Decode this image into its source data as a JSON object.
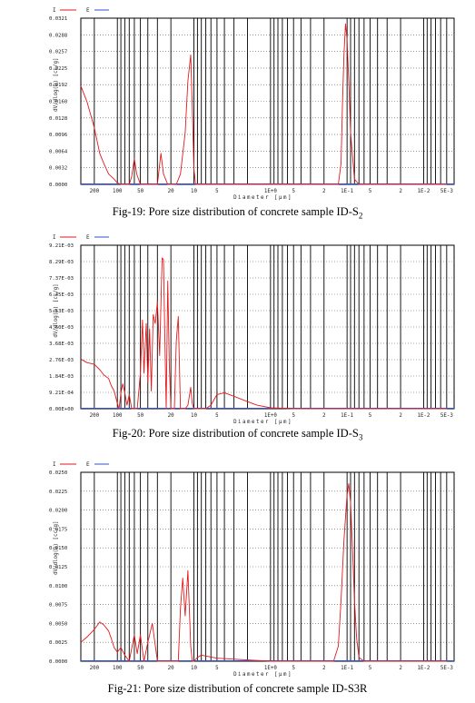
{
  "figures": [
    {
      "caption": {
        "prefix": "Fig-19: Pore size distribution of concrete sample ID-S",
        "sub": "2"
      },
      "legend": {
        "cum": "I",
        "inc": "E"
      },
      "ylabel": "dV/dlog(D) [cc/g]",
      "xlabel": "Diameter [µm]",
      "yticks": [
        "0.0321",
        "0.0288",
        "0.0257",
        "0.0225",
        "0.0192",
        "0.0160",
        "0.0128",
        "0.0096",
        "0.0064",
        "0.0032",
        "0.0000"
      ],
      "xticks": [
        "200",
        "100",
        "50",
        "20",
        "10",
        "5",
        "1E+0",
        "5",
        "2",
        "1E-1",
        "5",
        "2",
        "1E-2",
        "5E-3"
      ]
    },
    {
      "caption": {
        "prefix": "Fig-20: Pore size distribution of concrete sample ID-S",
        "sub": "3"
      },
      "legend": {
        "cum": "I",
        "inc": "E"
      },
      "ylabel": "dV/dlog(D) [cc/g]",
      "xlabel": "Diameter [µm]",
      "yticks": [
        "9.21E-03",
        "8.29E-03",
        "7.37E-03",
        "6.45E-03",
        "5.53E-03",
        "4.60E-03",
        "3.68E-03",
        "2.76E-03",
        "1.84E-03",
        "9.21E-04",
        "0.00E+00"
      ],
      "xticks": [
        "200",
        "100",
        "50",
        "20",
        "10",
        "5",
        "1E+0",
        "5",
        "2",
        "1E-1",
        "5",
        "2",
        "1E-2",
        "5E-3"
      ]
    },
    {
      "caption": {
        "prefix": "Fig-21: Pore size distribution of concrete sample ID-S3R",
        "sub": ""
      },
      "legend": {
        "cum": "I",
        "inc": "E"
      },
      "ylabel": "dV/dlog(D) [cc/g]",
      "xlabel": "Diameter [µm]",
      "yticks": [
        "0.0250",
        "0.0225",
        "0.0200",
        "0.0175",
        "0.0150",
        "0.0125",
        "0.0100",
        "0.0075",
        "0.0050",
        "0.0025",
        "0.0000"
      ],
      "xticks": [
        "200",
        "100",
        "50",
        "20",
        "10",
        "5",
        "1E+0",
        "5",
        "2",
        "1E-1",
        "5",
        "2",
        "1E-2",
        "5E-3"
      ]
    }
  ],
  "colors": {
    "incremental": "#e31a1c",
    "cumulative": "#3050d0",
    "grid": "#000000"
  },
  "chart_data": [
    {
      "type": "line",
      "xscale": "log-reversed",
      "xlim": [
        300,
        0.004
      ],
      "ylim": [
        0,
        0.0321
      ],
      "grid": true,
      "legend_position": "top-left",
      "series": [
        {
          "name": "E",
          "x": [
            300,
            250,
            200,
            170,
            150,
            130,
            110,
            100,
            90,
            80,
            70,
            65,
            60,
            56,
            50,
            45,
            40,
            35,
            30,
            27,
            25,
            22,
            20,
            17,
            15,
            13,
            12,
            11,
            10.5,
            10,
            9.5,
            9,
            8,
            6,
            1,
            0.5,
            0.2,
            0.13,
            0.12,
            0.115,
            0.11,
            0.105,
            0.1,
            0.095,
            0.09,
            0.08,
            0.07,
            0.06,
            0.055,
            0.05,
            0.03,
            0.01,
            0.005
          ],
          "y": [
            0.019,
            0.016,
            0.011,
            0.006,
            0.004,
            0.002,
            0.001,
            0.0003,
            0,
            0,
            0,
            0.0015,
            0.005,
            0.002,
            0,
            0,
            0,
            0,
            0,
            0.006,
            0.002,
            0,
            0,
            0,
            0.002,
            0.01,
            0.02,
            0.025,
            0.015,
            0.003,
            0,
            0,
            0,
            0,
            0,
            0,
            0,
            0,
            0.004,
            0.015,
            0.025,
            0.031,
            0.028,
            0.02,
            0.01,
            0.001,
            0,
            0,
            0,
            0,
            0,
            0,
            0
          ]
        }
      ]
    },
    {
      "type": "line",
      "xscale": "log-reversed",
      "xlim": [
        300,
        0.004
      ],
      "ylim": [
        0,
        0.00921
      ],
      "grid": true,
      "legend_position": "top-left",
      "series": [
        {
          "name": "E",
          "x": [
            300,
            250,
            200,
            170,
            150,
            130,
            120,
            110,
            100,
            95,
            90,
            85,
            80,
            75,
            70,
            65,
            60,
            55,
            50,
            47,
            45,
            42,
            40,
            38,
            36,
            34,
            32,
            30,
            28,
            26,
            25,
            24,
            23,
            22,
            21,
            20,
            19,
            18,
            17,
            16,
            15,
            14,
            13,
            12,
            11,
            10.5,
            10,
            9,
            8,
            7,
            6,
            5,
            4,
            3,
            2,
            1.5,
            1,
            0.5,
            0.1,
            0.01,
            0.005
          ],
          "y": [
            0.0028,
            0.0026,
            0.0025,
            0.0022,
            0.0019,
            0.0017,
            0.0013,
            0.001,
            0.0003,
            0,
            0.0009,
            0.0014,
            0.0009,
            0.0002,
            0.0008,
            0,
            0,
            0,
            0.002,
            0.005,
            0.002,
            0.0048,
            0.0015,
            0.0045,
            0.001,
            0.0053,
            0.0048,
            0.006,
            0.003,
            0.0085,
            0.0084,
            0.004,
            0,
            0.0072,
            0.0025,
            0,
            0,
            0,
            0.0038,
            0.0052,
            0,
            0,
            0,
            0.0002,
            0.0012,
            0.0003,
            0,
            0,
            0,
            0,
            0.0002,
            0.0008,
            0.0009,
            0.0007,
            0.0004,
            0.0002,
            5e-05,
            0,
            0,
            0,
            0
          ]
        }
      ]
    },
    {
      "type": "line",
      "xscale": "log-reversed",
      "xlim": [
        300,
        0.004
      ],
      "ylim": [
        0,
        0.025
      ],
      "grid": true,
      "legend_position": "top-left",
      "series": [
        {
          "name": "E",
          "x": [
            300,
            250,
            200,
            170,
            150,
            130,
            120,
            110,
            100,
            90,
            80,
            70,
            60,
            55,
            50,
            45,
            40,
            35,
            30,
            25,
            22,
            20,
            18,
            16,
            15,
            14,
            13,
            12,
            11,
            10.5,
            10,
            9,
            8,
            5,
            1,
            0.5,
            0.2,
            0.15,
            0.13,
            0.12,
            0.11,
            0.1,
            0.095,
            0.09,
            0.085,
            0.08,
            0.075,
            0.07,
            0.06,
            0.05,
            0.01,
            0.005
          ],
          "y": [
            0.0025,
            0.0032,
            0.0042,
            0.0052,
            0.0048,
            0.004,
            0.003,
            0.0018,
            0.0012,
            0.0018,
            0.0008,
            0,
            0.0035,
            0.001,
            0.0035,
            0,
            0.0025,
            0.005,
            0,
            0,
            0,
            0,
            0,
            0,
            0.007,
            0.011,
            0.006,
            0.012,
            0.002,
            0,
            0,
            0.0005,
            0.0008,
            0.0004,
            0,
            0,
            0,
            0,
            0.002,
            0.008,
            0.016,
            0.022,
            0.0235,
            0.021,
            0.015,
            0.008,
            0.003,
            0.0005,
            0,
            0,
            0,
            0
          ]
        }
      ]
    }
  ]
}
